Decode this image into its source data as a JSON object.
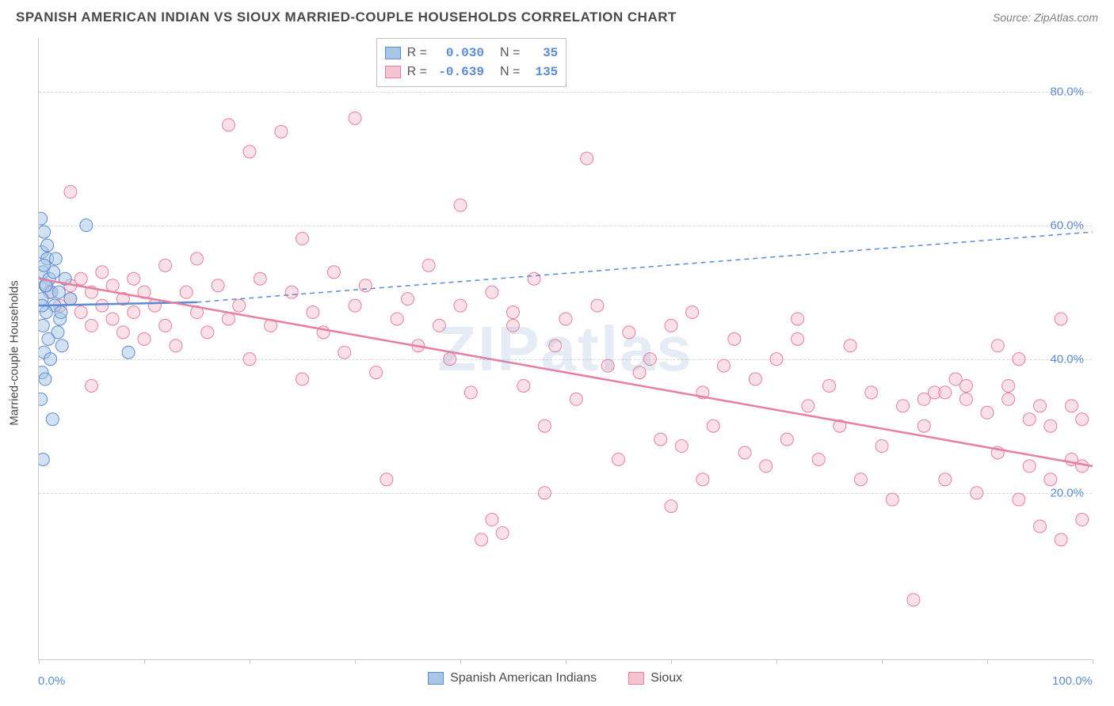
{
  "header": {
    "title": "SPANISH AMERICAN INDIAN VS SIOUX MARRIED-COUPLE HOUSEHOLDS CORRELATION CHART",
    "source_prefix": "Source: ",
    "source_name": "ZipAtlas.com"
  },
  "chart": {
    "type": "scatter",
    "ylabel": "Married-couple Households",
    "watermark": "ZIPatlas",
    "background_color": "#ffffff",
    "grid_color": "#d8d8d8",
    "axis_color": "#c8c8c8",
    "text_color": "#4a4a4a",
    "tick_color": "#5b8bd4",
    "xlim": [
      0,
      100
    ],
    "ylim": [
      -5,
      88
    ],
    "yticks": [
      20,
      40,
      60,
      80
    ],
    "ytick_labels": [
      "20.0%",
      "40.0%",
      "60.0%",
      "80.0%"
    ],
    "xticks": [
      0,
      10,
      20,
      30,
      40,
      50,
      60,
      70,
      80,
      90,
      100
    ],
    "xtick_labels": {
      "0": "0.0%",
      "100": "100.0%"
    },
    "marker_radius": 8,
    "marker_opacity": 0.5,
    "line_width_solid": 2.5,
    "line_width_dash": 1.5,
    "series": [
      {
        "name": "Spanish American Indians",
        "color_fill": "#a8c6e8",
        "color_stroke": "#5b8bd4",
        "R": "0.030",
        "N": "35",
        "trend_solid": {
          "x1": 0,
          "y1": 48,
          "x2": 15,
          "y2": 48.5
        },
        "trend_dash": {
          "x1": 15,
          "y1": 48.5,
          "x2": 100,
          "y2": 59
        },
        "points": [
          [
            0.2,
            61
          ],
          [
            0.5,
            59
          ],
          [
            0.3,
            56
          ],
          [
            0.8,
            55
          ],
          [
            0.4,
            53
          ],
          [
            1.0,
            52
          ],
          [
            0.6,
            51
          ],
          [
            1.2,
            50
          ],
          [
            0.3,
            49
          ],
          [
            1.5,
            48
          ],
          [
            0.7,
            47
          ],
          [
            2.0,
            46
          ],
          [
            0.4,
            45
          ],
          [
            1.8,
            44
          ],
          [
            0.9,
            43
          ],
          [
            2.2,
            42
          ],
          [
            0.5,
            41
          ],
          [
            1.1,
            40
          ],
          [
            0.3,
            38
          ],
          [
            1.6,
            55
          ],
          [
            0.2,
            34
          ],
          [
            1.3,
            31
          ],
          [
            0.4,
            25
          ],
          [
            2.5,
            52
          ],
          [
            0.8,
            57
          ],
          [
            1.9,
            50
          ],
          [
            3.0,
            49
          ],
          [
            0.6,
            37
          ],
          [
            4.5,
            60
          ],
          [
            0.3,
            48
          ],
          [
            1.4,
            53
          ],
          [
            8.5,
            41
          ],
          [
            0.7,
            51
          ],
          [
            2.1,
            47
          ],
          [
            0.5,
            54
          ]
        ]
      },
      {
        "name": "Sioux",
        "color_fill": "#f5c4d0",
        "color_stroke": "#e87ea0",
        "R": "-0.639",
        "N": "135",
        "trend_solid": {
          "x1": 0,
          "y1": 52,
          "x2": 100,
          "y2": 24
        },
        "trend_dash": null,
        "points": [
          [
            1,
            50
          ],
          [
            2,
            48
          ],
          [
            3,
            51
          ],
          [
            3,
            49
          ],
          [
            4,
            47
          ],
          [
            4,
            52
          ],
          [
            5,
            50
          ],
          [
            5,
            45
          ],
          [
            6,
            48
          ],
          [
            6,
            53
          ],
          [
            7,
            46
          ],
          [
            7,
            51
          ],
          [
            8,
            44
          ],
          [
            8,
            49
          ],
          [
            9,
            47
          ],
          [
            9,
            52
          ],
          [
            10,
            50
          ],
          [
            10,
            43
          ],
          [
            11,
            48
          ],
          [
            12,
            45
          ],
          [
            12,
            54
          ],
          [
            13,
            42
          ],
          [
            14,
            50
          ],
          [
            15,
            47
          ],
          [
            15,
            55
          ],
          [
            16,
            44
          ],
          [
            17,
            51
          ],
          [
            18,
            46
          ],
          [
            18,
            75
          ],
          [
            19,
            48
          ],
          [
            20,
            40
          ],
          [
            20,
            71
          ],
          [
            21,
            52
          ],
          [
            22,
            45
          ],
          [
            23,
            74
          ],
          [
            24,
            50
          ],
          [
            25,
            37
          ],
          [
            25,
            58
          ],
          [
            26,
            47
          ],
          [
            27,
            44
          ],
          [
            28,
            53
          ],
          [
            29,
            41
          ],
          [
            30,
            76
          ],
          [
            30,
            48
          ],
          [
            31,
            51
          ],
          [
            32,
            38
          ],
          [
            33,
            22
          ],
          [
            34,
            46
          ],
          [
            35,
            49
          ],
          [
            36,
            42
          ],
          [
            37,
            54
          ],
          [
            38,
            45
          ],
          [
            39,
            40
          ],
          [
            40,
            63
          ],
          [
            40,
            48
          ],
          [
            41,
            35
          ],
          [
            42,
            13
          ],
          [
            43,
            50
          ],
          [
            44,
            14
          ],
          [
            45,
            45
          ],
          [
            45,
            47
          ],
          [
            46,
            36
          ],
          [
            47,
            52
          ],
          [
            48,
            30
          ],
          [
            49,
            42
          ],
          [
            50,
            46
          ],
          [
            51,
            34
          ],
          [
            52,
            70
          ],
          [
            53,
            48
          ],
          [
            54,
            39
          ],
          [
            55,
            25
          ],
          [
            56,
            44
          ],
          [
            57,
            38
          ],
          [
            58,
            40
          ],
          [
            59,
            28
          ],
          [
            60,
            45
          ],
          [
            61,
            27
          ],
          [
            62,
            47
          ],
          [
            63,
            35
          ],
          [
            64,
            30
          ],
          [
            65,
            39
          ],
          [
            66,
            43
          ],
          [
            67,
            26
          ],
          [
            68,
            37
          ],
          [
            69,
            24
          ],
          [
            70,
            40
          ],
          [
            71,
            28
          ],
          [
            72,
            43
          ],
          [
            73,
            33
          ],
          [
            74,
            25
          ],
          [
            75,
            36
          ],
          [
            76,
            30
          ],
          [
            77,
            42
          ],
          [
            78,
            22
          ],
          [
            79,
            35
          ],
          [
            80,
            27
          ],
          [
            81,
            19
          ],
          [
            82,
            33
          ],
          [
            83,
            4
          ],
          [
            84,
            30
          ],
          [
            85,
            35
          ],
          [
            86,
            22
          ],
          [
            87,
            37
          ],
          [
            88,
            34
          ],
          [
            89,
            20
          ],
          [
            90,
            32
          ],
          [
            91,
            26
          ],
          [
            91,
            42
          ],
          [
            92,
            34
          ],
          [
            92,
            36
          ],
          [
            93,
            19
          ],
          [
            93,
            40
          ],
          [
            94,
            31
          ],
          [
            94,
            24
          ],
          [
            95,
            33
          ],
          [
            95,
            15
          ],
          [
            96,
            30
          ],
          [
            96,
            22
          ],
          [
            97,
            46
          ],
          [
            97,
            13
          ],
          [
            98,
            33
          ],
          [
            98,
            25
          ],
          [
            99,
            24
          ],
          [
            99,
            31
          ],
          [
            99,
            16
          ],
          [
            88,
            36
          ],
          [
            86,
            35
          ],
          [
            84,
            34
          ],
          [
            5,
            36
          ],
          [
            3,
            65
          ],
          [
            48,
            20
          ],
          [
            60,
            18
          ],
          [
            43,
            16
          ],
          [
            63,
            22
          ],
          [
            72,
            46
          ]
        ]
      }
    ]
  },
  "legend_top": {
    "R_label": "R =",
    "N_label": "N ="
  },
  "legend_bottom": {
    "items": [
      "Spanish American Indians",
      "Sioux"
    ]
  }
}
